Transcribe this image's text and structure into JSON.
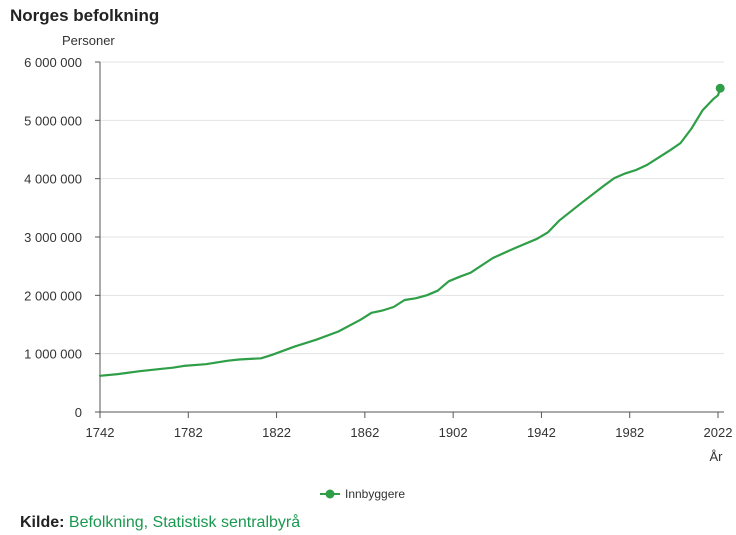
{
  "chart_data": {
    "type": "line",
    "title": "Norges befolkning",
    "ylabel": "Personer",
    "xlabel": "År",
    "xlim": [
      1742,
      2022
    ],
    "ylim": [
      0,
      6000000
    ],
    "x_ticks": [
      "1742",
      "1782",
      "1822",
      "1862",
      "1902",
      "1942",
      "1982",
      "2022"
    ],
    "y_ticks": [
      "0",
      "1 000 000",
      "2 000 000",
      "3 000 000",
      "4 000 000",
      "5 000 000",
      "6 000 000"
    ],
    "grid": true,
    "legend": "bottom-center",
    "series": [
      {
        "name": "Innbyggere",
        "color": "#2e9e47",
        "points": [
          [
            1742,
            620000
          ],
          [
            1750,
            650000
          ],
          [
            1760,
            700000
          ],
          [
            1770,
            740000
          ],
          [
            1775,
            760000
          ],
          [
            1780,
            790000
          ],
          [
            1790,
            820000
          ],
          [
            1800,
            880000
          ],
          [
            1805,
            900000
          ],
          [
            1810,
            910000
          ],
          [
            1815,
            920000
          ],
          [
            1820,
            980000
          ],
          [
            1830,
            1120000
          ],
          [
            1840,
            1240000
          ],
          [
            1850,
            1380000
          ],
          [
            1860,
            1580000
          ],
          [
            1865,
            1700000
          ],
          [
            1870,
            1740000
          ],
          [
            1875,
            1800000
          ],
          [
            1880,
            1920000
          ],
          [
            1885,
            1950000
          ],
          [
            1890,
            2000000
          ],
          [
            1895,
            2080000
          ],
          [
            1900,
            2240000
          ],
          [
            1905,
            2320000
          ],
          [
            1910,
            2390000
          ],
          [
            1920,
            2640000
          ],
          [
            1930,
            2810000
          ],
          [
            1940,
            2970000
          ],
          [
            1945,
            3080000
          ],
          [
            1950,
            3280000
          ],
          [
            1960,
            3580000
          ],
          [
            1970,
            3870000
          ],
          [
            1975,
            4010000
          ],
          [
            1980,
            4090000
          ],
          [
            1985,
            4150000
          ],
          [
            1990,
            4240000
          ],
          [
            2000,
            4480000
          ],
          [
            2005,
            4610000
          ],
          [
            2010,
            4860000
          ],
          [
            2015,
            5170000
          ],
          [
            2020,
            5370000
          ],
          [
            2022,
            5430000
          ],
          [
            2023,
            5550000
          ]
        ]
      }
    ]
  },
  "source": {
    "label": "Kilde:",
    "text": "Befolkning, Statistisk sentralbyrå"
  }
}
